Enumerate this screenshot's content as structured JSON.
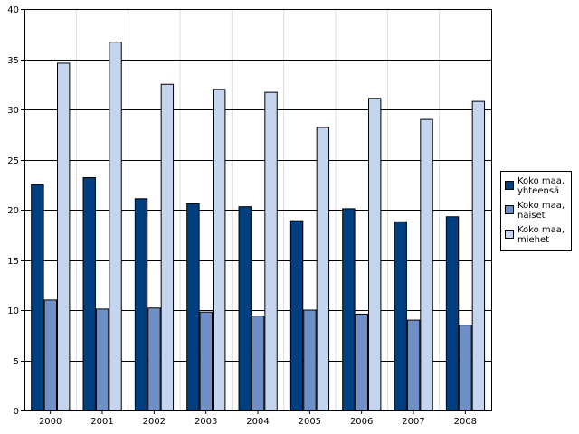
{
  "chart_data": {
    "type": "bar",
    "title": "",
    "xlabel": "",
    "ylabel": "",
    "categories": [
      "2000",
      "2001",
      "2002",
      "2003",
      "2004",
      "2005",
      "2006",
      "2007",
      "2008"
    ],
    "series": [
      {
        "name": "Koko maa, yhteensä",
        "label_lines": [
          "Koko maa,",
          "yhteensä"
        ],
        "color": "#003f7f",
        "values": [
          22.5,
          23.2,
          21.1,
          20.6,
          20.3,
          18.9,
          20.1,
          18.8,
          19.3
        ]
      },
      {
        "name": "Koko maa, naiset",
        "label_lines": [
          "Koko maa,",
          "naiset"
        ],
        "color": "#6f8fc7",
        "values": [
          11.0,
          10.1,
          10.2,
          9.8,
          9.4,
          10.0,
          9.6,
          9.0,
          8.5
        ]
      },
      {
        "name": "Koko maa, miehet",
        "label_lines": [
          "Koko maa,",
          "miehet"
        ],
        "color": "#c6d5ef",
        "values": [
          34.6,
          36.7,
          32.5,
          32.0,
          31.7,
          28.2,
          31.1,
          29.0,
          30.8
        ]
      }
    ],
    "ylim": [
      0,
      40
    ],
    "yticks": [
      0,
      5,
      10,
      15,
      20,
      25,
      30,
      35,
      40
    ],
    "grid": {
      "horizontal": true,
      "vertical": true
    },
    "legend_position": "right"
  }
}
